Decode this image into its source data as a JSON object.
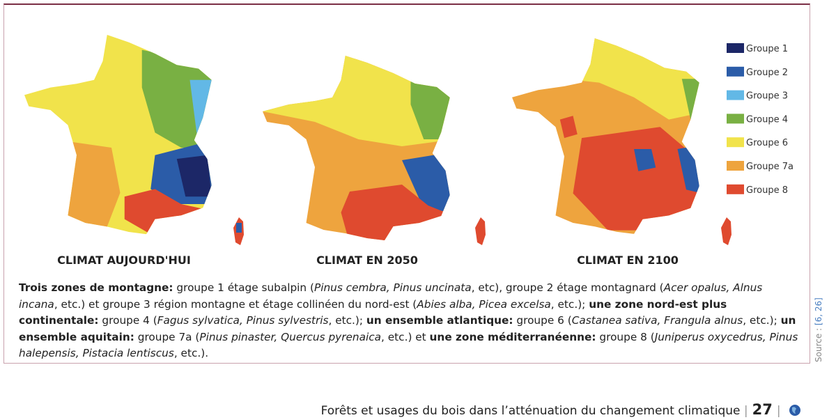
{
  "legend": [
    {
      "label": "Groupe 1",
      "color": "#1c2767"
    },
    {
      "label": "Groupe 2",
      "color": "#2b5ca8"
    },
    {
      "label": "Groupe 3",
      "color": "#62b8e6"
    },
    {
      "label": "Groupe 4",
      "color": "#79b043"
    },
    {
      "label": "Groupe 6",
      "color": "#f1e34b"
    },
    {
      "label": "Groupe 7a",
      "color": "#eea43e"
    },
    {
      "label": "Groupe 8",
      "color": "#df4a2f"
    }
  ],
  "maps": [
    {
      "caption": "CLIMAT AUJOURD'HUI"
    },
    {
      "caption": "CLIMAT EN 2050"
    },
    {
      "caption": "CLIMAT EN 2100"
    }
  ],
  "paragraph": [
    {
      "text": "Trois zones de montagne:",
      "style": "bold"
    },
    {
      "text": " groupe 1 étage subalpin (",
      "style": "regular"
    },
    {
      "text": "Pinus cembra, Pinus uncinata",
      "style": "italic"
    },
    {
      "text": ", etc), groupe 2 étage montagnard (",
      "style": "regular"
    },
    {
      "text": "Acer opalus, Alnus incana",
      "style": "italic"
    },
    {
      "text": ", etc.) et groupe 3 région montagne et étage collinéen du nord-est (",
      "style": "regular"
    },
    {
      "text": "Abies alba, Picea excelsa",
      "style": "italic"
    },
    {
      "text": ", etc.); ",
      "style": "regular"
    },
    {
      "text": "une zone nord-est plus continentale:",
      "style": "bold"
    },
    {
      "text": " groupe 4 (",
      "style": "regular"
    },
    {
      "text": "Fagus sylvatica, Pinus sylvestris",
      "style": "italic"
    },
    {
      "text": ", etc.); ",
      "style": "regular"
    },
    {
      "text": "un ensemble atlantique:",
      "style": "bold"
    },
    {
      "text": " groupe 6 (",
      "style": "regular"
    },
    {
      "text": "Castanea sativa, Frangula alnus",
      "style": "italic"
    },
    {
      "text": ", etc.); ",
      "style": "regular"
    },
    {
      "text": "un ensemble aquitain:",
      "style": "bold"
    },
    {
      "text": " groupe 7a (",
      "style": "regular"
    },
    {
      "text": "Pinus pinaster, Quercus pyrenaica",
      "style": "italic"
    },
    {
      "text": ", etc.) et ",
      "style": "regular"
    },
    {
      "text": "une zone méditerranéenne:",
      "style": "bold"
    },
    {
      "text": " groupe 8 (",
      "style": "regular"
    },
    {
      "text": "Juniperus oxycedrus, Pinus halepensis, Pistacia lentiscus",
      "style": "italic"
    },
    {
      "text": ", etc.).",
      "style": "regular"
    }
  ],
  "source": {
    "label": "Source :",
    "refs": "[6, 26]"
  },
  "footer": {
    "title": "Forêts et usages du bois dans l’atténuation du changement climatique",
    "page": "27"
  }
}
